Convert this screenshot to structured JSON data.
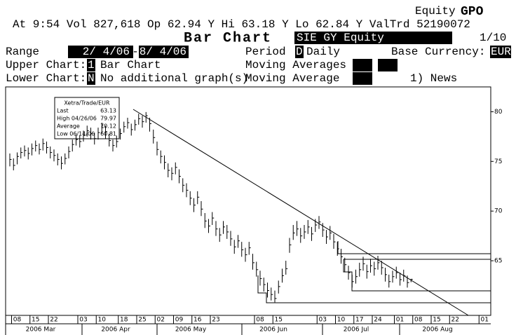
{
  "header": {
    "product": "Equity",
    "function": "GPO",
    "quote": "At  9:54 Vol 827,618 Op 62.94 Y Hi 63.18 Y Lo 62.84 Y ValTrd 52190072",
    "title": "Bar Chart",
    "security": "SIE  GY Equity",
    "page": "1/10",
    "range_label": "Range",
    "range_start": "2/ 4/06",
    "range_sep": "-",
    "range_end": "8/ 4/06",
    "period_label": "Period",
    "period_code": "D",
    "period": "Daily",
    "currency_label": "Base Currency:",
    "currency": "EUR",
    "upper_label": "Upper Chart:",
    "upper_code": "1",
    "upper": "Bar Chart",
    "ma_label": "Moving Averages",
    "lower_label": "Lower Chart:",
    "lower_code": "N",
    "lower": "No additional graph(s)",
    "ma2_label": "Moving Average",
    "news": "1) News"
  },
  "info_box": {
    "title": "Xetra/Trade/EUR",
    "rows": [
      [
        "Last",
        "63.13"
      ],
      [
        "High  04/26/06",
        "79.97"
      ],
      [
        "Average",
        "70.12"
      ],
      [
        "Low  06/14/06",
        "60.81"
      ]
    ]
  },
  "chart_data": {
    "type": "ohlc",
    "categories": [
      null,
      null,
      "08",
      null,
      null,
      null,
      null,
      "15",
      null,
      null,
      null,
      null,
      "22",
      null,
      null,
      null,
      null,
      null,
      null,
      null,
      "03",
      null,
      null,
      null,
      null,
      "10",
      null,
      null,
      null,
      null,
      null,
      "18",
      null,
      null,
      null,
      null,
      "25",
      null,
      null,
      null,
      null,
      "02",
      null,
      null,
      null,
      null,
      "09",
      null,
      null,
      null,
      null,
      "16",
      null,
      null,
      null,
      null,
      "23",
      null,
      null,
      null,
      null,
      null,
      null,
      null,
      null,
      null,
      null,
      null,
      "08",
      null,
      null,
      null,
      null,
      "15",
      null,
      null,
      null,
      null,
      null,
      null,
      null,
      null,
      null,
      null,
      null,
      "03",
      null,
      null,
      null,
      null,
      "10",
      null,
      null,
      null,
      null,
      "17",
      null,
      null,
      null,
      null,
      "24",
      null,
      null,
      null,
      null,
      null,
      "01",
      null,
      null,
      null,
      null,
      "08",
      null,
      null,
      null,
      null,
      "15",
      null,
      null,
      null,
      null,
      "22",
      null,
      null,
      null,
      null,
      null,
      null,
      null,
      "01"
    ],
    "months": [
      "2006 Mar",
      "2006 Apr",
      "2006 May",
      "2006 Jun",
      "2006 Jul",
      "2006 Aug"
    ],
    "high": [
      75.8,
      75.3,
      75.9,
      76.4,
      76.6,
      76.4,
      76.8,
      77.1,
      76.8,
      77.3,
      77.0,
      76.5,
      76.2,
      75.8,
      75.5,
      75.8,
      76.5,
      77.2,
      77.8,
      77.6,
      78.1,
      78.6,
      78.4,
      77.9,
      78.4,
      78.9,
      78.6,
      77.8,
      77.2,
      77.6,
      78.3,
      79.0,
      79.4,
      78.8,
      79.2,
      79.8,
      79.6,
      79.97,
      79.4,
      78.2,
      77.0,
      76.1,
      75.6,
      74.8,
      74.4,
      74.9,
      74.2,
      73.3,
      72.8,
      72.0,
      71.3,
      72.0,
      71.0,
      69.8,
      69.2,
      69.9,
      69.0,
      68.3,
      69.0,
      68.6,
      68.0,
      67.1,
      67.6,
      66.9,
      66.3,
      66.9,
      65.7,
      64.9,
      64.0,
      63.3,
      62.8,
      62.3,
      62.0,
      63.0,
      64.2,
      65.0,
      67.3,
      68.6,
      69.0,
      68.3,
      68.6,
      69.1,
      68.4,
      69.2,
      69.5,
      68.8,
      68.1,
      68.5,
      67.7,
      66.9,
      66.2,
      65.3,
      64.5,
      63.6,
      64.1,
      64.8,
      65.4,
      64.6,
      65.2,
      64.9,
      65.5,
      65.0,
      64.3,
      63.6,
      64.0,
      64.4,
      63.8,
      64.1,
      63.5,
      63.18,
      null,
      null,
      null,
      null,
      null,
      null,
      null,
      null,
      null,
      null,
      null,
      null,
      null,
      null,
      null,
      null,
      null,
      null,
      null,
      null
    ],
    "low": [
      74.5,
      74.1,
      74.7,
      75.3,
      75.5,
      75.2,
      75.6,
      76.0,
      75.7,
      76.1,
      75.8,
      75.3,
      75.0,
      74.6,
      74.2,
      74.7,
      75.3,
      76.0,
      76.6,
      76.4,
      77.0,
      77.5,
      77.2,
      76.7,
      77.2,
      77.8,
      77.3,
      76.5,
      76.0,
      76.4,
      77.2,
      77.9,
      78.3,
      77.6,
      78.1,
      78.7,
      78.4,
      78.9,
      78.0,
      76.8,
      75.6,
      74.8,
      74.2,
      73.4,
      73.1,
      73.7,
      72.8,
      71.9,
      71.4,
      70.6,
      69.9,
      70.7,
      69.5,
      68.3,
      67.8,
      68.6,
      67.5,
      66.9,
      67.7,
      67.2,
      66.5,
      65.7,
      66.3,
      65.4,
      64.9,
      65.6,
      64.1,
      63.4,
      62.5,
      61.9,
      61.3,
      61.0,
      60.81,
      61.7,
      62.8,
      63.6,
      65.8,
      67.1,
      67.5,
      66.8,
      67.2,
      67.7,
      67.0,
      67.9,
      68.2,
      67.4,
      66.7,
      67.1,
      66.2,
      65.5,
      64.7,
      63.9,
      63.1,
      62.3,
      62.7,
      63.4,
      64.0,
      63.2,
      63.8,
      63.5,
      64.1,
      63.6,
      62.9,
      62.3,
      62.8,
      63.2,
      62.5,
      62.9,
      62.3,
      62.84,
      null,
      null,
      null,
      null,
      null,
      null,
      null,
      null,
      null,
      null,
      null,
      null,
      null,
      null,
      null,
      null,
      null,
      null,
      null,
      null
    ],
    "close": [
      75.2,
      74.6,
      75.5,
      75.9,
      76.1,
      75.8,
      76.3,
      76.6,
      76.2,
      76.8,
      76.4,
      75.9,
      75.6,
      75.2,
      74.8,
      75.3,
      76.0,
      76.7,
      77.2,
      77.0,
      77.6,
      78.1,
      77.8,
      77.3,
      77.9,
      78.4,
      78.0,
      77.1,
      76.6,
      77.0,
      77.8,
      78.5,
      78.9,
      78.2,
      78.7,
      79.3,
      79.0,
      79.6,
      78.8,
      77.4,
      76.2,
      75.5,
      74.9,
      74.1,
      73.8,
      74.4,
      73.5,
      72.6,
      72.1,
      71.3,
      70.6,
      71.4,
      70.2,
      69.0,
      68.5,
      69.3,
      68.2,
      67.6,
      68.4,
      67.9,
      67.2,
      66.4,
      67.0,
      66.1,
      65.6,
      66.3,
      64.8,
      64.1,
      63.2,
      62.6,
      62.0,
      61.6,
      61.2,
      62.4,
      63.5,
      64.2,
      66.6,
      67.8,
      68.2,
      67.5,
      67.9,
      68.4,
      67.7,
      68.6,
      68.9,
      68.1,
      67.4,
      67.8,
      66.9,
      66.2,
      65.4,
      64.6,
      63.8,
      62.9,
      63.4,
      64.1,
      64.7,
      63.9,
      64.5,
      64.2,
      64.8,
      64.3,
      63.6,
      62.9,
      63.4,
      63.8,
      63.1,
      63.5,
      62.8,
      63.13,
      null,
      null,
      null,
      null,
      null,
      null,
      null,
      null,
      null,
      null,
      null,
      null,
      null,
      null,
      null,
      null,
      null,
      null,
      null,
      null
    ],
    "color": "#000000",
    "ylim": [
      59.5,
      82.5
    ],
    "yticks": [
      65,
      70,
      75,
      80
    ]
  }
}
